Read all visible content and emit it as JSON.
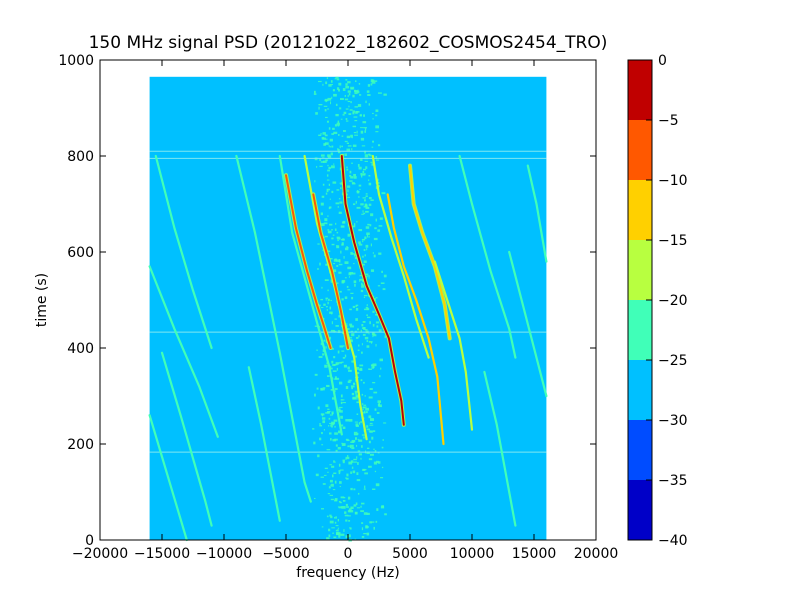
{
  "chart_data": {
    "type": "heatmap",
    "title": "150 MHz signal PSD (20121022_182602_COSMOS2454_TRO)",
    "xlabel": "frequency (Hz)",
    "ylabel": "time (s)",
    "xlim": [
      -20000,
      20000
    ],
    "ylim": [
      0,
      1000
    ],
    "x_ticks": [
      -20000,
      -15000,
      -10000,
      -5000,
      0,
      5000,
      10000,
      15000,
      20000
    ],
    "x_tick_labels": [
      "−20000",
      "−15000",
      "−10000",
      "−5000",
      "0",
      "5000",
      "10000",
      "15000",
      "20000"
    ],
    "y_ticks": [
      0,
      200,
      400,
      600,
      800,
      1000
    ],
    "y_tick_labels": [
      "0",
      "200",
      "400",
      "600",
      "800",
      "1000"
    ],
    "data_extent": {
      "freq_min": -16000,
      "freq_max": 16000,
      "time_min": 0,
      "time_max": 965
    },
    "background_level": -28,
    "noise_band": {
      "center_hz": 0,
      "width_hz": 6000,
      "level": -23
    },
    "horizontal_artifacts_s": [
      183,
      433,
      795,
      810
    ],
    "colorbar": {
      "levels": [
        -40,
        -35,
        -30,
        -25,
        -20,
        -15,
        -10,
        -5,
        0
      ],
      "tick_labels": [
        "−40",
        "−35",
        "−30",
        "−25",
        "−20",
        "−15",
        "−10",
        "−5",
        "0"
      ],
      "colors": [
        "#0000c8",
        "#004cff",
        "#00c0ff",
        "#40ffb8",
        "#b8ff40",
        "#ffd000",
        "#ff5800",
        "#c00000"
      ]
    },
    "series": [
      {
        "level": -22,
        "points": [
          [
            -16000,
            570
          ],
          [
            -14000,
            440
          ],
          [
            -12000,
            320
          ],
          [
            -10500,
            215
          ]
        ]
      },
      {
        "level": -22,
        "points": [
          [
            -16000,
            260
          ],
          [
            -14500,
            130
          ],
          [
            -13000,
            0
          ]
        ]
      },
      {
        "level": -23,
        "points": [
          [
            -15500,
            800
          ],
          [
            -14000,
            650
          ],
          [
            -12500,
            520
          ],
          [
            -11000,
            400
          ]
        ]
      },
      {
        "level": -23,
        "points": [
          [
            -15000,
            390
          ],
          [
            -13500,
            260
          ],
          [
            -11500,
            80
          ],
          [
            -11000,
            30
          ]
        ]
      },
      {
        "level": -23,
        "points": [
          [
            -9000,
            800
          ],
          [
            -7500,
            640
          ],
          [
            -5500,
            390
          ],
          [
            -3500,
            120
          ],
          [
            -3000,
            80
          ]
        ]
      },
      {
        "level": -24,
        "points": [
          [
            -8000,
            360
          ],
          [
            -7000,
            240
          ],
          [
            -5500,
            40
          ]
        ]
      },
      {
        "level": -21,
        "points": [
          [
            -5500,
            800
          ],
          [
            -4500,
            640
          ],
          [
            -3000,
            500
          ],
          [
            -1500,
            360
          ],
          [
            -500,
            220
          ]
        ]
      },
      {
        "level": -7,
        "points": [
          [
            -5000,
            760
          ],
          [
            -4200,
            650
          ],
          [
            -3300,
            560
          ],
          [
            -2500,
            490
          ],
          [
            -2000,
            450
          ],
          [
            -1400,
            400
          ]
        ]
      },
      {
        "level": -16,
        "points": [
          [
            -3500,
            800
          ],
          [
            -2500,
            660
          ],
          [
            -1000,
            520
          ],
          [
            500,
            380
          ],
          [
            1000,
            280
          ],
          [
            1500,
            210
          ]
        ]
      },
      {
        "level": -8,
        "points": [
          [
            -2800,
            720
          ],
          [
            -2200,
            640
          ],
          [
            -1300,
            560
          ],
          [
            -600,
            480
          ],
          [
            0,
            400
          ]
        ]
      },
      {
        "level": -5,
        "points": [
          [
            -500,
            800
          ],
          [
            -200,
            700
          ],
          [
            500,
            620
          ],
          [
            1500,
            530
          ],
          [
            2500,
            470
          ],
          [
            3300,
            420
          ],
          [
            3800,
            350
          ],
          [
            4300,
            290
          ],
          [
            4500,
            240
          ]
        ]
      },
      {
        "level": -17,
        "points": [
          [
            2000,
            800
          ],
          [
            2500,
            720
          ],
          [
            3500,
            630
          ],
          [
            4500,
            550
          ],
          [
            5500,
            460
          ],
          [
            6500,
            380
          ]
        ]
      },
      {
        "level": -15,
        "points": [
          [
            3200,
            720
          ],
          [
            3700,
            650
          ],
          [
            4500,
            570
          ],
          [
            5500,
            500
          ],
          [
            6500,
            420
          ],
          [
            7200,
            340
          ],
          [
            7700,
            200
          ]
        ]
      },
      {
        "level": -11,
        "points": [
          [
            5000,
            780
          ],
          [
            5300,
            700
          ],
          [
            6000,
            640
          ],
          [
            7000,
            570
          ],
          [
            7800,
            490
          ],
          [
            8200,
            420
          ]
        ]
      },
      {
        "level": -16,
        "points": [
          [
            7000,
            580
          ],
          [
            8000,
            500
          ],
          [
            9000,
            420
          ],
          [
            9500,
            350
          ],
          [
            10000,
            230
          ]
        ]
      },
      {
        "level": -22,
        "points": [
          [
            9000,
            800
          ],
          [
            10000,
            700
          ],
          [
            11500,
            560
          ],
          [
            13000,
            440
          ],
          [
            13500,
            380
          ]
        ]
      },
      {
        "level": -22,
        "points": [
          [
            11000,
            350
          ],
          [
            12000,
            240
          ],
          [
            13000,
            100
          ],
          [
            13500,
            30
          ]
        ]
      },
      {
        "level": -22,
        "points": [
          [
            13000,
            600
          ],
          [
            14500,
            450
          ],
          [
            16000,
            300
          ]
        ]
      },
      {
        "level": -23,
        "points": [
          [
            14500,
            780
          ],
          [
            15200,
            700
          ],
          [
            16000,
            580
          ]
        ]
      }
    ]
  }
}
